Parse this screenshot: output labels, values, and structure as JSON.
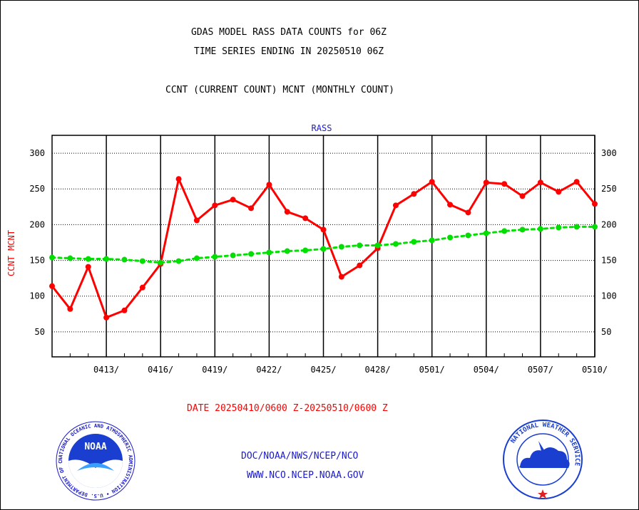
{
  "titles": {
    "line1": "GDAS MODEL RASS DATA COUNTS for 06Z",
    "line2": "TIME SERIES ENDING IN 20250510 06Z",
    "line3": "CCNT (CURRENT COUNT) MCNT (MONTHLY COUNT)"
  },
  "footer": {
    "date_range": "DATE 20250410/0600 Z-20250510/0600 Z",
    "org": "DOC/NOAA/NWS/NCEP/NCO",
    "url": "WWW.NCO.NCEP.NOAA.GOV"
  },
  "logos": {
    "noaa": {
      "icon": "noaa-logo",
      "text": "NOAA",
      "ring": "NATIONAL OCEANIC AND ATMOSPHERIC ADMINISTRATION • U.S. DEPARTMENT OF COMMERCE"
    },
    "nws": {
      "icon": "nws-logo",
      "ring": "NATIONAL WEATHER SERVICE"
    }
  },
  "colors": {
    "ccnt": "#ff0000",
    "mcnt": "#00e000",
    "title_blue": "#1a1acc",
    "axis": "#000000"
  },
  "chart_data": {
    "type": "line",
    "title": "RASS",
    "ylabel": "CCNT  MCNT",
    "ylim": [
      15,
      325
    ],
    "yticks": [
      50,
      100,
      150,
      200,
      250,
      300
    ],
    "x_start": "2025-04-10",
    "x_end": "2025-05-10",
    "x_tick_labels": [
      "0413/",
      "0416/",
      "0419/",
      "0422/",
      "0425/",
      "0428/",
      "0501/",
      "0504/",
      "0507/",
      "0510/"
    ],
    "grid": true,
    "series": [
      {
        "name": "CCNT",
        "color": "#ff0000",
        "x": [
          "0410",
          "0411",
          "0412",
          "0413",
          "0414",
          "0415",
          "0416",
          "0417",
          "0418",
          "0419",
          "0420",
          "0421",
          "0422",
          "0423",
          "0424",
          "0425",
          "0426",
          "0427",
          "0428",
          "0429",
          "0430",
          "0501",
          "0502",
          "0503",
          "0504",
          "0505",
          "0506",
          "0507",
          "0508",
          "0509",
          "0510"
        ],
        "values": [
          114,
          82,
          141,
          70,
          80,
          112,
          145,
          264,
          206,
          227,
          235,
          223,
          256,
          218,
          209,
          193,
          127,
          143,
          167,
          227,
          243,
          260,
          228,
          217,
          259,
          257,
          240,
          259,
          246,
          260,
          229
        ]
      },
      {
        "name": "MCNT",
        "color": "#00e000",
        "x": [
          "0410",
          "0411",
          "0412",
          "0413",
          "0414",
          "0415",
          "0416",
          "0417",
          "0418",
          "0419",
          "0420",
          "0421",
          "0422",
          "0423",
          "0424",
          "0425",
          "0426",
          "0427",
          "0428",
          "0429",
          "0430",
          "0501",
          "0502",
          "0503",
          "0504",
          "0505",
          "0506",
          "0507",
          "0508",
          "0509",
          "0510"
        ],
        "values": [
          154,
          153,
          152,
          152,
          151,
          149,
          147,
          149,
          153,
          155,
          157,
          159,
          161,
          163,
          164,
          166,
          169,
          171,
          171,
          173,
          176,
          178,
          182,
          185,
          188,
          191,
          193,
          194,
          196,
          197,
          197
        ]
      }
    ]
  }
}
